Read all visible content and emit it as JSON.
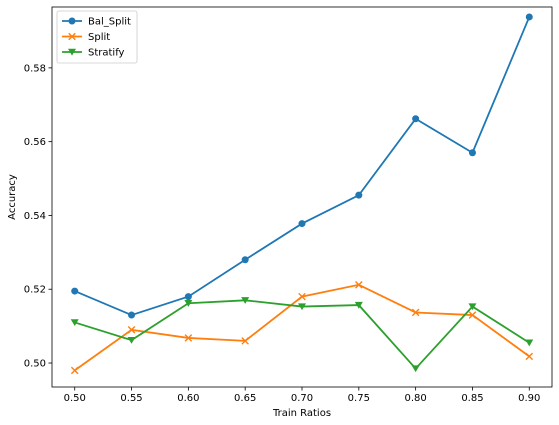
{
  "chart_data": {
    "type": "line",
    "xlabel": "Train Ratios",
    "ylabel": "Accuracy",
    "x": [
      0.5,
      0.55,
      0.6,
      0.65,
      0.7,
      0.75,
      0.8,
      0.85,
      0.9
    ],
    "x_ticks": [
      "0.50",
      "0.55",
      "0.60",
      "0.65",
      "0.70",
      "0.75",
      "0.80",
      "0.85",
      "0.90"
    ],
    "y_ticks": [
      "0.50",
      "0.52",
      "0.54",
      "0.56",
      "0.58"
    ],
    "xlim": [
      0.48,
      0.92
    ],
    "ylim": [
      0.4935,
      0.5965
    ],
    "grid": false,
    "legend_position": "top-left",
    "series": [
      {
        "name": "Bal_Split",
        "color": "#1f77b4",
        "marker": "circle",
        "values": [
          0.5195,
          0.513,
          0.518,
          0.528,
          0.5378,
          0.5455,
          0.5662,
          0.557,
          0.5938
        ]
      },
      {
        "name": "Split",
        "color": "#ff7f0e",
        "marker": "x",
        "values": [
          0.498,
          0.509,
          0.5068,
          0.506,
          0.518,
          0.5212,
          0.5137,
          0.513,
          0.5018
        ]
      },
      {
        "name": "Stratify",
        "color": "#2ca02c",
        "marker": "triangle-down",
        "values": [
          0.511,
          0.5062,
          0.5162,
          0.517,
          0.5153,
          0.5157,
          0.4985,
          0.5153,
          0.5055
        ]
      }
    ]
  }
}
